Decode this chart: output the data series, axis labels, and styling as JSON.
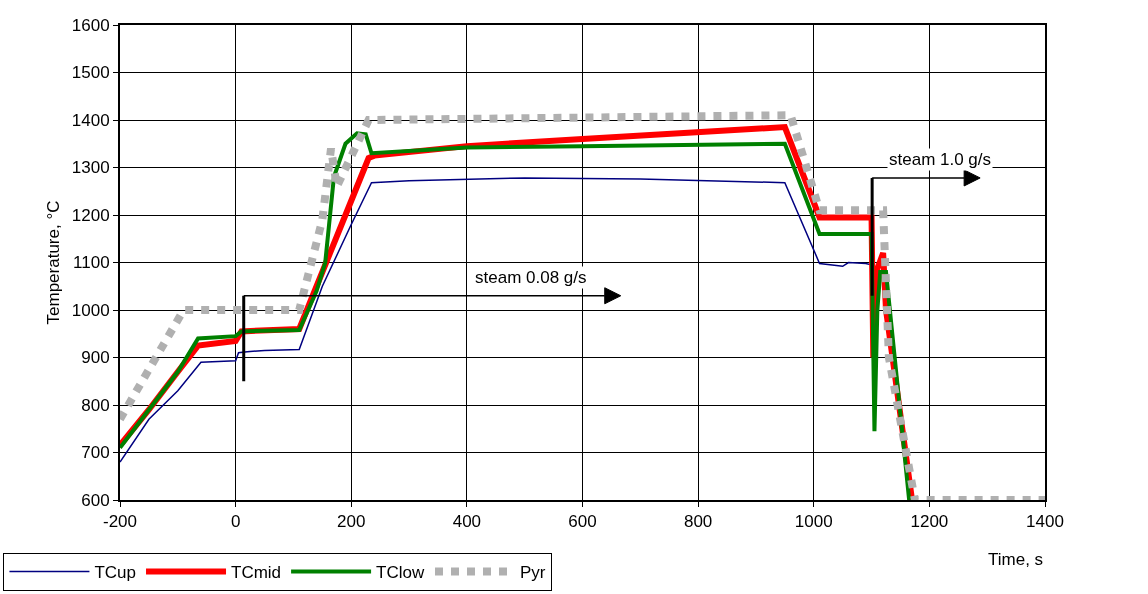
{
  "chart_data": {
    "type": "line",
    "xlabel": "Time, s",
    "ylabel": "Temperature, °C",
    "xlim": [
      -200,
      1400
    ],
    "xticks": [
      -200,
      0,
      200,
      400,
      600,
      800,
      1000,
      1200,
      1400
    ],
    "ylim": [
      600,
      1600
    ],
    "yticks": [
      600,
      700,
      800,
      900,
      1000,
      1100,
      1200,
      1300,
      1400,
      1500,
      1600
    ],
    "grid": true,
    "legend": "bottom left",
    "marker": "none",
    "series": [
      {
        "name": "TCup",
        "color": "#000080",
        "line_style": "solid",
        "x": [
          -200,
          -150,
          -100,
          -60,
          -20,
          0,
          5,
          20,
          50,
          110,
          150,
          200,
          235,
          300,
          500,
          700,
          950,
          1010,
          1050,
          1060,
          1090,
          1100
        ],
        "values": [
          680,
          770,
          830,
          890,
          892,
          893,
          910,
          912,
          915,
          917,
          1050,
          1180,
          1268,
          1272,
          1278,
          1276,
          1268,
          1098,
          1092,
          1100,
          1098,
          1095
        ]
      },
      {
        "name": "TCmid",
        "color": "#ff0000",
        "line_style": "solid",
        "x": [
          -200,
          -150,
          -100,
          -65,
          0,
          10,
          110,
          150,
          200,
          230,
          240,
          400,
          600,
          950,
          1010,
          1100,
          1103,
          1108,
          1120,
          1125,
          1170
        ],
        "values": [
          715,
          790,
          870,
          925,
          935,
          955,
          960,
          1080,
          1230,
          1320,
          1325,
          1345,
          1360,
          1385,
          1195,
          1195,
          900,
          1080,
          1120,
          1000,
          600
        ]
      },
      {
        "name": "TClow",
        "color": "#008000",
        "line_style": "solid",
        "x": [
          -200,
          -150,
          -100,
          -65,
          0,
          10,
          110,
          140,
          155,
          160,
          170,
          190,
          210,
          225,
          235,
          400,
          600,
          950,
          1010,
          1100,
          1105,
          1110,
          1115,
          1125,
          1165
        ],
        "values": [
          710,
          790,
          870,
          940,
          945,
          955,
          958,
          1040,
          1100,
          1160,
          1280,
          1350,
          1372,
          1370,
          1330,
          1342,
          1345,
          1350,
          1160,
          1160,
          745,
          1000,
          1080,
          1080,
          600
        ]
      },
      {
        "name": "Pyr",
        "color": "#b0b0b0",
        "line_style": "dotted",
        "x": [
          -200,
          -90,
          110,
          150,
          165,
          175,
          230,
          960,
          1010,
          1120,
          1130,
          1175,
          1400
        ],
        "values": [
          770,
          1000,
          1000,
          1190,
          1340,
          1260,
          1400,
          1410,
          1210,
          1210,
          900,
          600,
          600
        ]
      }
    ],
    "ref_lines": [
      {
        "axis": "x",
        "value": 14,
        "label": "steam 0.08 g/s",
        "color": "#000000"
      },
      {
        "axis": "x",
        "value": 1101,
        "label": "steam 1.0 g/s",
        "color": "#000000"
      }
    ]
  }
}
